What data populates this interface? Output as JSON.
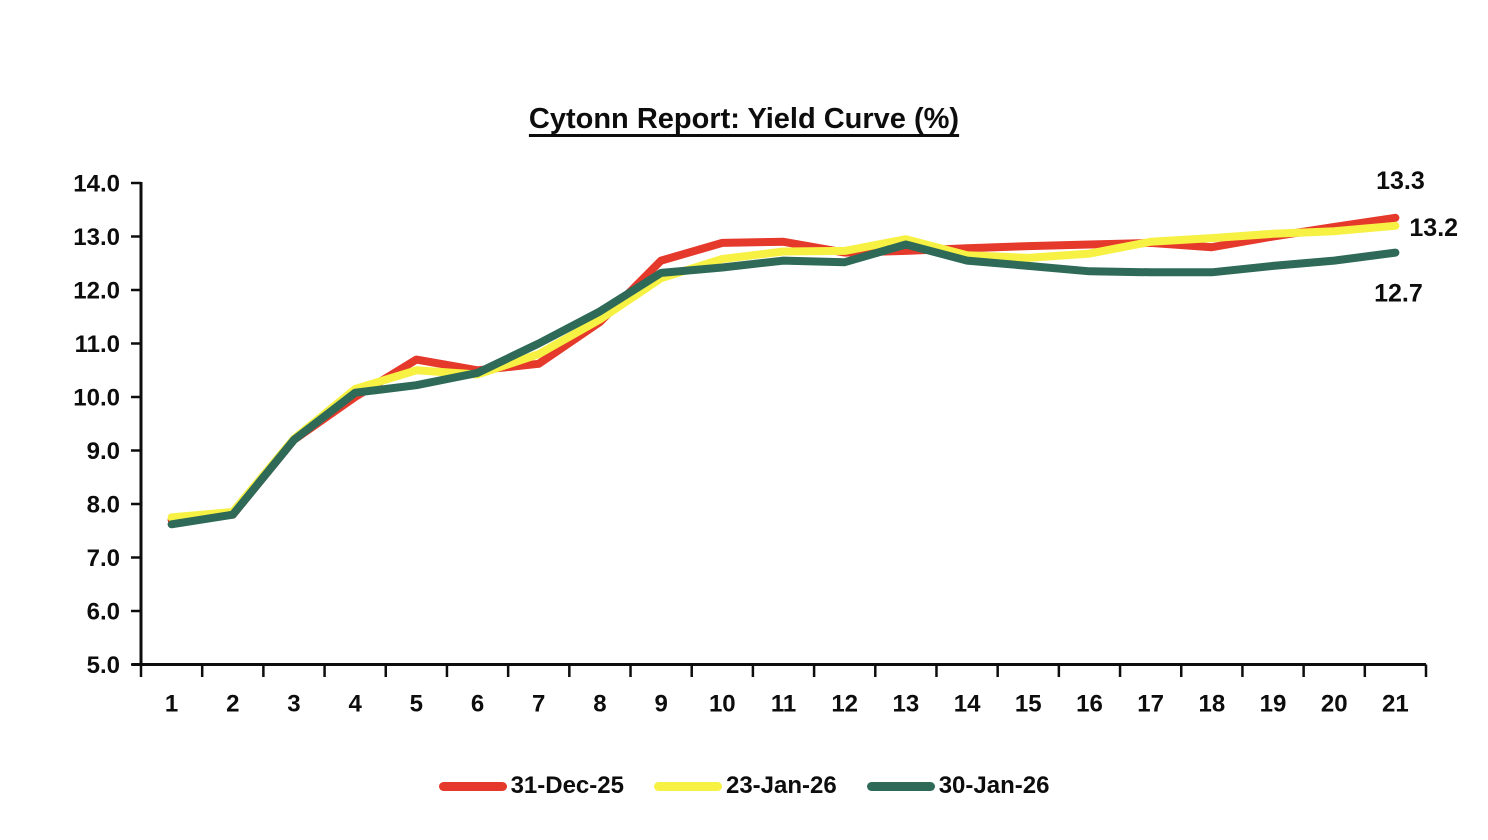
{
  "title": "Cytonn Report: Yield Curve (%)",
  "chart_data": {
    "type": "line",
    "title": "Cytonn Report: Yield Curve (%)",
    "x": [
      1,
      2,
      3,
      4,
      5,
      6,
      7,
      8,
      9,
      10,
      11,
      12,
      13,
      14,
      15,
      16,
      17,
      18,
      19,
      20,
      21
    ],
    "xlabel": "",
    "ylabel": "",
    "ylim": [
      5.0,
      14.0
    ],
    "ytick_step": 1.0,
    "ytick_labels": [
      "5.0",
      "6.0",
      "7.0",
      "8.0",
      "9.0",
      "10.0",
      "11.0",
      "12.0",
      "13.0",
      "14.0"
    ],
    "grid": false,
    "legend_position": "bottom",
    "series": [
      {
        "name": "31-Dec-25",
        "color": "#E5392B",
        "values": [
          7.7,
          7.8,
          9.2,
          10.0,
          10.7,
          10.5,
          10.62,
          11.4,
          12.55,
          12.88,
          12.9,
          12.7,
          12.73,
          12.78,
          12.82,
          12.85,
          12.88,
          12.8,
          13.0,
          13.18,
          13.35
        ]
      },
      {
        "name": "23-Jan-26",
        "color": "#F7F143",
        "values": [
          7.75,
          7.85,
          9.22,
          10.15,
          10.5,
          10.42,
          10.8,
          11.45,
          12.22,
          12.58,
          12.72,
          12.73,
          12.95,
          12.65,
          12.6,
          12.68,
          12.9,
          12.97,
          13.05,
          13.1,
          13.2
        ]
      },
      {
        "name": "30-Jan-26",
        "color": "#2E6A57",
        "values": [
          7.62,
          7.8,
          9.2,
          10.08,
          10.22,
          10.45,
          11.0,
          11.6,
          12.32,
          12.42,
          12.55,
          12.52,
          12.85,
          12.55,
          12.45,
          12.35,
          12.33,
          12.33,
          12.45,
          12.55,
          12.7
        ]
      }
    ],
    "annotations": [
      {
        "text": "13.3",
        "series": 0,
        "position": "above-end"
      },
      {
        "text": "13.2",
        "series": 1,
        "position": "right-end"
      },
      {
        "text": "12.7",
        "series": 2,
        "position": "below-end"
      }
    ]
  }
}
